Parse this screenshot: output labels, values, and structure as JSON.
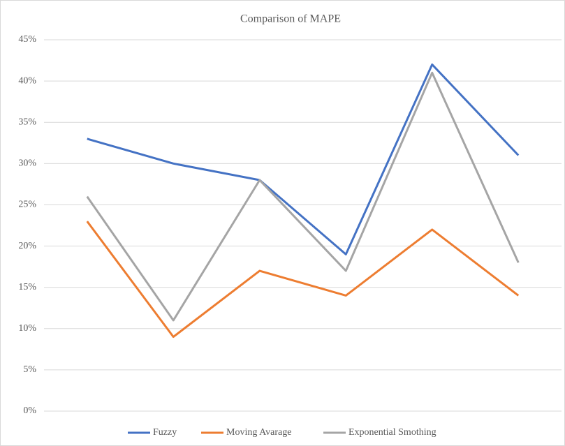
{
  "chart_data": {
    "type": "line",
    "title": "Comparison of  MAPE",
    "categories": [
      null,
      null,
      null,
      null,
      null,
      null
    ],
    "series": [
      {
        "name": "Fuzzy",
        "color": "#4472c4",
        "values": [
          33,
          30,
          28,
          19,
          42,
          31
        ]
      },
      {
        "name": "Moving Avarage",
        "color": "#ed7d31",
        "values": [
          23,
          9,
          17,
          14,
          22,
          14
        ]
      },
      {
        "name": "Exponential Smothing",
        "color": "#a5a5a5",
        "values": [
          26,
          11,
          28,
          17,
          41,
          18
        ]
      }
    ],
    "ylim": [
      0,
      45
    ],
    "yticks": [
      {
        "value": 0,
        "label": "0%"
      },
      {
        "value": 5,
        "label": "5%"
      },
      {
        "value": 10,
        "label": "10%"
      },
      {
        "value": 15,
        "label": "15%"
      },
      {
        "value": 20,
        "label": "20%"
      },
      {
        "value": 25,
        "label": "25%"
      },
      {
        "value": 30,
        "label": "30%"
      },
      {
        "value": 35,
        "label": "35%"
      },
      {
        "value": 40,
        "label": "40%"
      },
      {
        "value": 45,
        "label": "45%"
      }
    ],
    "grid": true,
    "legend": "bottom"
  }
}
